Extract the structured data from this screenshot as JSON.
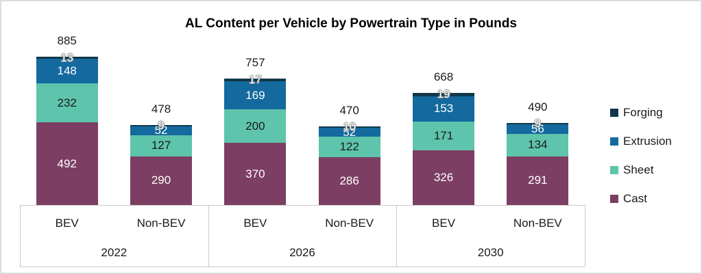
{
  "title": "AL Content per Vehicle by Powertrain Type in Pounds",
  "chart_data": {
    "type": "bar",
    "stacked": true,
    "y_axis_visible": false,
    "grid": false,
    "legend_position": "right",
    "groups": [
      "2022",
      "2026",
      "2030"
    ],
    "bar_powertrain_labels": [
      "BEV",
      "Non-BEV",
      "BEV",
      "Non-BEV",
      "BEV",
      "Non-BEV"
    ],
    "series": [
      {
        "name": "Cast",
        "color": "#7d3e63",
        "label_color": "#ffffff",
        "values": [
          492,
          290,
          370,
          286,
          326,
          291
        ]
      },
      {
        "name": "Sheet",
        "color": "#5ec4ab",
        "label_color": "#1a1a1a",
        "values": [
          232,
          127,
          200,
          122,
          171,
          134
        ]
      },
      {
        "name": "Extrusion",
        "color": "#14699e",
        "label_color": "#ffffff",
        "values": [
          148,
          52,
          169,
          52,
          153,
          56
        ]
      },
      {
        "name": "Forging",
        "color": "#10384a",
        "label_color": "#ffffff",
        "values": [
          13,
          9,
          17,
          10,
          19,
          9
        ]
      }
    ],
    "legend_order_top_to_bottom": [
      "Forging",
      "Extrusion",
      "Sheet",
      "Cast"
    ],
    "totals": [
      885,
      478,
      757,
      470,
      668,
      490
    ]
  },
  "colors": {
    "axis_line": "#c9c9c9",
    "chart_border": "#dcdcdc",
    "title_text": "#000000",
    "axis_text": "#1a1a1a"
  }
}
